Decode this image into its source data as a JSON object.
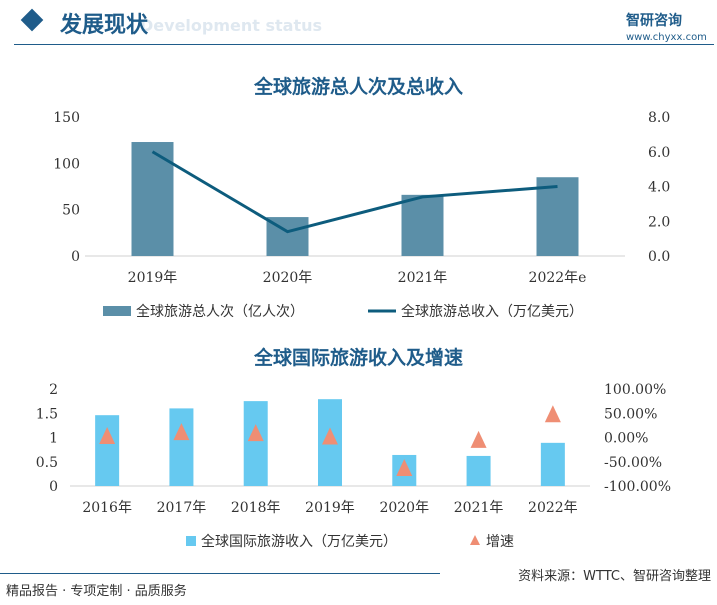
{
  "header": {
    "title": "发展现状",
    "subtitle": "Development status",
    "logo": "智研咨询",
    "url": "www.chyxx.com"
  },
  "footer": {
    "left": "精品报告 · 专项定制 · 品质服务",
    "source": "资料来源：WTTC、智研咨询整理"
  },
  "chart_data": [
    {
      "type": "bar",
      "title": "全球旅游总人次及总收入",
      "categories": [
        "2019年",
        "2020年",
        "2021年",
        "2022年e"
      ],
      "series": [
        {
          "name": "全球旅游总人次（亿人次）",
          "type": "bar",
          "axis": "left",
          "values": [
            123,
            42,
            66,
            85
          ],
          "color": "#5b8fa8"
        },
        {
          "name": "全球旅游总收入（万亿美元）",
          "type": "line",
          "axis": "right",
          "values": [
            6.0,
            1.4,
            3.4,
            4.0
          ],
          "color": "#0d5c7d"
        }
      ],
      "ylim_left": [
        0,
        150
      ],
      "yticks_left": [
        "0",
        "50",
        "100",
        "150"
      ],
      "ylim_right": [
        0,
        8
      ],
      "yticks_right": [
        "0.0",
        "2.0",
        "4.0",
        "6.0",
        "8.0"
      ],
      "legend": "bottom"
    },
    {
      "type": "bar",
      "title": "全球国际旅游收入及增速",
      "categories": [
        "2016年",
        "2017年",
        "2018年",
        "2019年",
        "2020年",
        "2021年",
        "2022年"
      ],
      "series": [
        {
          "name": "全球国际旅游收入（万亿美元）",
          "type": "bar",
          "axis": "left",
          "values": [
            1.46,
            1.6,
            1.75,
            1.79,
            0.64,
            0.62,
            0.89
          ],
          "color": "#66c9f0"
        },
        {
          "name": "增速",
          "type": "scatter",
          "marker": "triangle",
          "axis": "right",
          "values": [
            3,
            11,
            9,
            2,
            -63,
            -5,
            48
          ],
          "color": "#ef8e74"
        }
      ],
      "ylim_left": [
        0,
        2
      ],
      "yticks_left": [
        "0",
        "0.5",
        "1",
        "1.5",
        "2"
      ],
      "ylim_right": [
        -100,
        100
      ],
      "yticks_right": [
        "-100.00%",
        "-50.00%",
        "0.00%",
        "50.00%",
        "100.00%"
      ],
      "legend": "bottom"
    }
  ]
}
